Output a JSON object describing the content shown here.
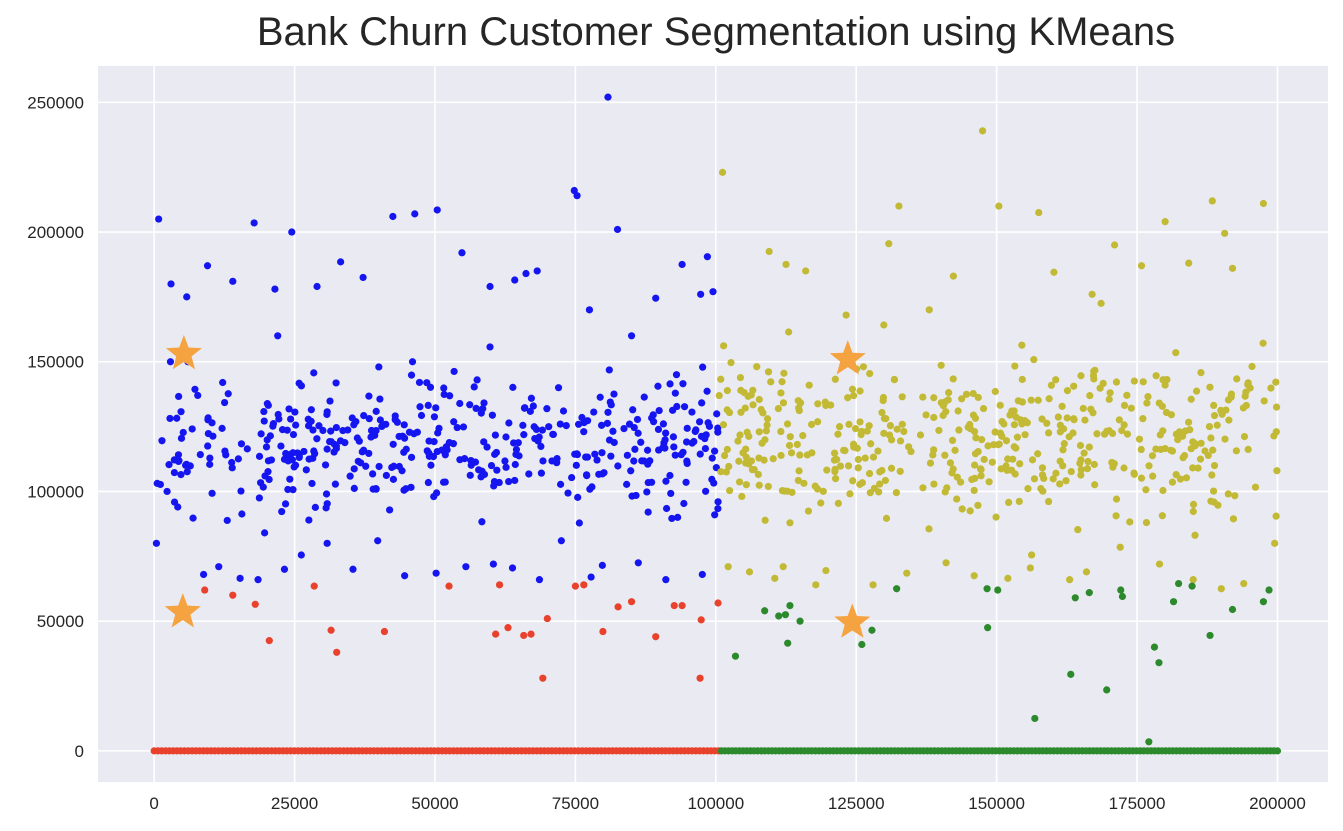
{
  "chart_data": {
    "type": "scatter",
    "title": "Bank Churn Customer Segmentation using KMeans",
    "xlabel": "",
    "ylabel": "",
    "xlim": [
      -10000,
      209000
    ],
    "ylim": [
      -12000,
      264000
    ],
    "x_ticks": [
      0,
      25000,
      50000,
      75000,
      100000,
      125000,
      150000,
      175000,
      200000
    ],
    "x_tick_labels": [
      "0",
      "25000",
      "50000",
      "75000",
      "100000",
      "125000",
      "150000",
      "175000",
      "200000"
    ],
    "y_ticks": [
      0,
      50000,
      100000,
      150000,
      200000,
      250000
    ],
    "y_tick_labels": [
      "0",
      "50000",
      "100000",
      "150000",
      "200000",
      "250000"
    ],
    "grid": true,
    "background": "#eaeaf2",
    "series": [
      {
        "color": "#1515f0",
        "points": [
          [
            800,
            205000
          ],
          [
            3000,
            180000
          ],
          [
            5800,
            175000
          ],
          [
            9500,
            187000
          ],
          [
            14000,
            181000
          ],
          [
            17800,
            203500
          ],
          [
            21500,
            178000
          ],
          [
            24500,
            200000
          ],
          [
            29000,
            179000
          ],
          [
            33200,
            188500
          ],
          [
            37200,
            182500
          ],
          [
            42500,
            206000
          ],
          [
            46400,
            207000
          ],
          [
            50400,
            208500
          ],
          [
            54800,
            192000
          ],
          [
            59800,
            179000
          ],
          [
            64200,
            181500
          ],
          [
            66200,
            184000
          ],
          [
            68200,
            185000
          ],
          [
            74800,
            216000
          ],
          [
            75300,
            214000
          ],
          [
            77500,
            170000
          ],
          [
            80800,
            252000
          ],
          [
            82500,
            201000
          ],
          [
            89300,
            174500
          ],
          [
            94000,
            187500
          ],
          [
            97300,
            176000
          ],
          [
            98500,
            190500
          ],
          [
            99500,
            177000
          ],
          [
            400,
            80000
          ],
          [
            4200,
            94000
          ],
          [
            8800,
            68000
          ],
          [
            11500,
            71000
          ],
          [
            15300,
            66500
          ],
          [
            18500,
            66000
          ],
          [
            23200,
            70000
          ],
          [
            26200,
            75500
          ],
          [
            30800,
            80000
          ],
          [
            35400,
            70000
          ],
          [
            39800,
            81000
          ],
          [
            44600,
            67500
          ],
          [
            50200,
            68500
          ],
          [
            55500,
            71000
          ],
          [
            60400,
            72000
          ],
          [
            63800,
            70500
          ],
          [
            68600,
            66000
          ],
          [
            72500,
            81000
          ],
          [
            77800,
            67000
          ],
          [
            79800,
            71500
          ],
          [
            86200,
            72500
          ],
          [
            91100,
            66000
          ],
          [
            97600,
            68000
          ],
          [
            99800,
            91000
          ],
          [
            100400,
            96000
          ],
          [
            2300,
            100000
          ],
          [
            2900,
            150000
          ],
          [
            12200,
            142000
          ],
          [
            40000,
            148000
          ],
          [
            57500,
            143000
          ],
          [
            85000,
            160000
          ],
          [
            6000,
            150000
          ],
          [
            22000,
            160000
          ],
          [
            46000,
            150000
          ],
          [
            72000,
            140000
          ],
          [
            93000,
            145000
          ]
        ],
        "cloud": {
          "x_range": [
            0,
            100500
          ],
          "y_range": [
            85000,
            150000
          ],
          "count": 430,
          "seed": 11
        }
      },
      {
        "color": "#e8412c",
        "points": [
          [
            9000,
            62000
          ],
          [
            14000,
            60000
          ],
          [
            18000,
            56500
          ],
          [
            20500,
            42500
          ],
          [
            28500,
            63500
          ],
          [
            31500,
            46500
          ],
          [
            32500,
            38000
          ],
          [
            41000,
            46000
          ],
          [
            52500,
            63500
          ],
          [
            60800,
            45000
          ],
          [
            61500,
            64000
          ],
          [
            63000,
            47500
          ],
          [
            65800,
            44500
          ],
          [
            67100,
            45000
          ],
          [
            69200,
            28000
          ],
          [
            70000,
            51000
          ],
          [
            75000,
            63500
          ],
          [
            76500,
            64000
          ],
          [
            79900,
            46000
          ],
          [
            82600,
            55500
          ],
          [
            85000,
            57500
          ],
          [
            89300,
            44000
          ],
          [
            92600,
            56000
          ],
          [
            94000,
            56000
          ],
          [
            97200,
            28000
          ],
          [
            97400,
            50500
          ],
          [
            100400,
            57000
          ]
        ],
        "zero_band": {
          "x_range": [
            0,
            100500
          ],
          "y": 0,
          "count": 150
        }
      },
      {
        "color": "#c2b935",
        "points": [
          [
            101200,
            223000
          ],
          [
            109500,
            192500
          ],
          [
            112500,
            187500
          ],
          [
            116000,
            185000
          ],
          [
            123200,
            168000
          ],
          [
            130800,
            195500
          ],
          [
            132600,
            210000
          ],
          [
            138000,
            170000
          ],
          [
            142300,
            183000
          ],
          [
            147500,
            239000
          ],
          [
            150400,
            210000
          ],
          [
            157500,
            207500
          ],
          [
            160200,
            184500
          ],
          [
            167000,
            176000
          ],
          [
            168600,
            172500
          ],
          [
            171000,
            195000
          ],
          [
            175800,
            187000
          ],
          [
            180000,
            204000
          ],
          [
            184200,
            188000
          ],
          [
            188400,
            212000
          ],
          [
            190600,
            199500
          ],
          [
            192000,
            186000
          ],
          [
            197500,
            211000
          ],
          [
            102200,
            71000
          ],
          [
            106000,
            69000
          ],
          [
            110500,
            66500
          ],
          [
            112000,
            71000
          ],
          [
            117800,
            64000
          ],
          [
            119600,
            69500
          ],
          [
            128000,
            64000
          ],
          [
            134000,
            68500
          ],
          [
            141000,
            72500
          ],
          [
            146000,
            67500
          ],
          [
            152000,
            66500
          ],
          [
            156000,
            70500
          ],
          [
            163000,
            66000
          ],
          [
            166000,
            69000
          ],
          [
            172000,
            78500
          ],
          [
            179000,
            72000
          ],
          [
            185000,
            66000
          ],
          [
            190000,
            62500
          ],
          [
            194000,
            64500
          ],
          [
            199500,
            80000
          ],
          [
            199800,
            123000
          ],
          [
            199900,
            108000
          ]
        ],
        "cloud": {
          "x_range": [
            100500,
            200000
          ],
          "y_range": [
            82000,
            158000
          ],
          "count": 470,
          "seed": 23
        }
      },
      {
        "color": "#2c8a2c",
        "points": [
          [
            103500,
            36500
          ],
          [
            108700,
            54000
          ],
          [
            111200,
            52000
          ],
          [
            112400,
            52500
          ],
          [
            112800,
            41500
          ],
          [
            113200,
            56000
          ],
          [
            115000,
            50000
          ],
          [
            126000,
            41000
          ],
          [
            127800,
            46500
          ],
          [
            132200,
            62500
          ],
          [
            148300,
            62500
          ],
          [
            148400,
            47500
          ],
          [
            150200,
            62000
          ],
          [
            156800,
            12500
          ],
          [
            163200,
            29500
          ],
          [
            164000,
            59000
          ],
          [
            166500,
            61000
          ],
          [
            169600,
            23500
          ],
          [
            172100,
            62000
          ],
          [
            172400,
            59500
          ],
          [
            177100,
            3500
          ],
          [
            178100,
            40000
          ],
          [
            178900,
            34000
          ],
          [
            181500,
            57500
          ],
          [
            182400,
            64500
          ],
          [
            184800,
            63500
          ],
          [
            188000,
            44500
          ],
          [
            192000,
            54500
          ],
          [
            197500,
            57500
          ],
          [
            198500,
            62000
          ]
        ],
        "zero_band": {
          "x_range": [
            101000,
            200000
          ],
          "y": 0,
          "count": 155
        }
      }
    ],
    "centroids": {
      "color": "#f5a340",
      "marker": "star",
      "points": [
        [
          5300,
          153000
        ],
        [
          5100,
          53500
        ],
        [
          123500,
          151000
        ],
        [
          124300,
          49500
        ]
      ]
    }
  }
}
